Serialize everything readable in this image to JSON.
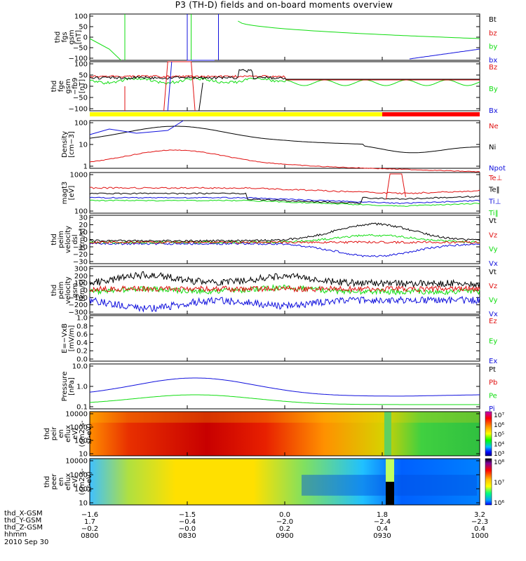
{
  "title": "P3 (TH-D) fields and on-board moments overview",
  "colors": {
    "black": "#000000",
    "red": "#e01010",
    "green": "#10dd10",
    "blue": "#1010dd",
    "yellow": "#ffff00",
    "axisred": "#ff0000"
  },
  "chart_data": [
    {
      "type": "line",
      "panel": "fgs",
      "ylabel": [
        "thd",
        "fgs",
        "gsm",
        "[nT]"
      ],
      "yticks": [
        "100",
        "50",
        "0",
        "−50",
        "−100"
      ],
      "ylim": [
        -100,
        100
      ],
      "legend": [
        {
          "name": "Bt",
          "color": "black"
        },
        {
          "name": "bz",
          "color": "red"
        },
        {
          "name": "by",
          "color": "green"
        },
        {
          "name": "bx",
          "color": "blue"
        }
      ]
    },
    {
      "type": "line",
      "panel": "fge",
      "ylabel": [
        "thd",
        "fge",
        "gsm",
        "−fb9",
        "[nT]"
      ],
      "yticks": [
        "100",
        "50",
        "0",
        "−50",
        "−100"
      ],
      "ylim": [
        -120,
        120
      ],
      "legend": [
        {
          "name": "Bz",
          "color": "red"
        },
        {
          "name": "By",
          "color": "green"
        },
        {
          "name": "Bx",
          "color": "blue"
        }
      ]
    },
    {
      "type": "line",
      "panel": "density",
      "ylabel": [
        "Density",
        "[cm−3]"
      ],
      "log": true,
      "yticks": [
        "100",
        "10",
        "1"
      ],
      "legend": [
        {
          "name": "Ne",
          "color": "red"
        },
        {
          "name": "Ni",
          "color": "black"
        },
        {
          "name": "Npot",
          "color": "blue"
        }
      ]
    },
    {
      "type": "line",
      "panel": "temp",
      "ylabel": [
        "magt3",
        "[eV]"
      ],
      "log": true,
      "yticks": [
        "1000",
        "100"
      ],
      "legend": [
        {
          "name": "Te⊥",
          "color": "red"
        },
        {
          "name": "Te‖",
          "color": "black"
        },
        {
          "name": "Ti⊥",
          "color": "blue"
        },
        {
          "name": "Ti‖",
          "color": "green"
        }
      ]
    },
    {
      "type": "line",
      "panel": "peem",
      "ylabel": [
        "thd",
        "peim",
        "velocity",
        "dsl",
        "[km/s]"
      ],
      "yticks": [
        "30",
        "20",
        "10",
        "0",
        "−10",
        "−20",
        "−30"
      ],
      "ylim": [
        -30,
        30
      ],
      "legend": [
        {
          "name": "Vt",
          "color": "black"
        },
        {
          "name": "Vz",
          "color": "red"
        },
        {
          "name": "Vy",
          "color": "green"
        },
        {
          "name": "Vx",
          "color": "blue"
        }
      ]
    },
    {
      "type": "line",
      "panel": "peim",
      "ylabel": [
        "thd",
        "peim",
        "velocity",
        "gsm",
        "[km/s]"
      ],
      "yticks": [
        "300",
        "200",
        "100",
        "0",
        "−100",
        "−200",
        "−300"
      ],
      "ylim": [
        -300,
        300
      ],
      "legend": [
        {
          "name": "Vt",
          "color": "black"
        },
        {
          "name": "Vz",
          "color": "red"
        },
        {
          "name": "Vy",
          "color": "green"
        },
        {
          "name": "Vx",
          "color": "blue"
        }
      ]
    },
    {
      "type": "line",
      "panel": "efield",
      "ylabel": [
        "E=−VxB",
        "[mV/m]"
      ],
      "yticks": [
        "1.0",
        "0.8",
        "0.6",
        "0.4",
        "0.2",
        "0.0"
      ],
      "ylim": [
        0,
        1
      ],
      "legend": [
        {
          "name": "Ez",
          "color": "red"
        },
        {
          "name": "Ey",
          "color": "green"
        },
        {
          "name": "Ex",
          "color": "blue"
        }
      ]
    },
    {
      "type": "line",
      "panel": "pressure",
      "ylabel": [
        "Pressure",
        "[nPa]"
      ],
      "log": true,
      "yticks": [
        "10.0",
        "1.0",
        "0.1"
      ],
      "legend": [
        {
          "name": "Pt",
          "color": "black"
        },
        {
          "name": "Pb",
          "color": "red"
        },
        {
          "name": "Pe",
          "color": "green"
        },
        {
          "name": "Pi",
          "color": "blue"
        }
      ]
    },
    {
      "type": "heatmap",
      "panel": "peir",
      "ylabel": [
        "thd",
        "peir",
        "en",
        "eflux",
        "eV/",
        "(cm2-s-",
        "sr-eV)"
      ],
      "yticks": [
        "10000",
        "1000",
        "100",
        "10"
      ],
      "colorbar": [
        "10⁷",
        "10⁶",
        "10⁵",
        "10⁴",
        "10³"
      ]
    },
    {
      "type": "heatmap",
      "panel": "peer",
      "ylabel": [
        "thd",
        "peer",
        "en",
        "eflux",
        "eV/",
        "(cm2-s-",
        "sr-eV)"
      ],
      "yticks": [
        "10000",
        "1000",
        "100",
        "10"
      ],
      "colorbar": [
        "10⁸",
        "10⁷",
        "10⁶"
      ]
    }
  ],
  "xaxis": {
    "ticks": [
      "0800",
      "0830",
      "0900",
      "0930",
      "1000"
    ]
  },
  "footer": {
    "labels": [
      "thd_X-GSM",
      "thd_Y-GSM",
      "thd_Z-GSM",
      "hhmm"
    ],
    "rows": [
      [
        "−1.6",
        "−1.5",
        "0.0",
        "1.8",
        "3.2"
      ],
      [
        "1.7",
        "−0.4",
        "−2.0",
        "−2.4",
        "−2.3"
      ],
      [
        "−0.2",
        "−0.0",
        "0.2",
        "0.4",
        "0.4"
      ],
      [
        "0800",
        "0830",
        "0900",
        "0930",
        "1000"
      ]
    ],
    "date": "2010 Sep 30"
  }
}
